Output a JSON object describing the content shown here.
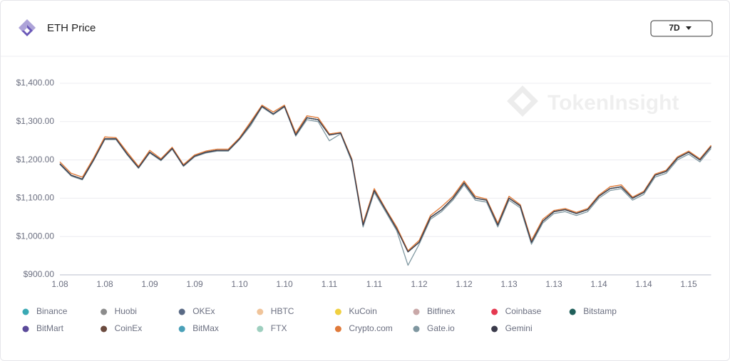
{
  "header": {
    "title": "ETH Price",
    "range": "7D"
  },
  "watermark": "TokenInsight",
  "chart_data": {
    "type": "line",
    "categories": [
      "1.08",
      null,
      null,
      null,
      "1.08",
      null,
      null,
      null,
      "1.09",
      null,
      null,
      null,
      "1.09",
      null,
      null,
      null,
      "1.10",
      null,
      null,
      null,
      "1.10",
      null,
      null,
      null,
      "1.11",
      null,
      null,
      null,
      "1.11",
      null,
      null,
      null,
      "1.12",
      null,
      null,
      null,
      "1.12",
      null,
      null,
      null,
      "1.13",
      null,
      null,
      null,
      "1.13",
      null,
      null,
      null,
      "1.14",
      null,
      null,
      null,
      "1.14",
      null,
      null,
      null,
      "1.15",
      null,
      null
    ],
    "ylim": [
      900,
      1400
    ],
    "yticks": [
      {
        "value": 900,
        "label": "$900.00"
      },
      {
        "value": 1000,
        "label": "$1,000.00"
      },
      {
        "value": 1100,
        "label": "$1,100.00"
      },
      {
        "value": 1200,
        "label": "$1,200.00"
      },
      {
        "value": 1300,
        "label": "$1,300.00"
      },
      {
        "value": 1400,
        "label": "$1,400.00"
      }
    ],
    "grid": true,
    "series": [
      {
        "name": "Binance",
        "color": "#3aa9b4",
        "values": [
          1190,
          1160,
          1150,
          1200,
          1255,
          1255,
          1215,
          1180,
          1220,
          1200,
          1230,
          1185,
          1210,
          1220,
          1225,
          1225,
          1255,
          1295,
          1340,
          1320,
          1340,
          1265,
          1310,
          1305,
          1265,
          1270,
          1200,
          1030,
          1120,
          1070,
          1020,
          960,
          985,
          1050,
          1070,
          1100,
          1140,
          1100,
          1095,
          1030,
          1100,
          1080,
          985,
          1040,
          1065,
          1070,
          1060,
          1070,
          1105,
          1125,
          1130,
          1100,
          1115,
          1160,
          1170,
          1205,
          1220,
          1200,
          1235
        ]
      },
      {
        "name": "Huobi",
        "color": "#8c8c8c",
        "values": [
          1190,
          1160,
          1150,
          1200,
          1255,
          1255,
          1215,
          1180,
          1220,
          1200,
          1230,
          1185,
          1210,
          1220,
          1225,
          1225,
          1255,
          1295,
          1340,
          1320,
          1340,
          1265,
          1310,
          1305,
          1265,
          1270,
          1200,
          1030,
          1120,
          1070,
          1020,
          960,
          985,
          1050,
          1070,
          1100,
          1140,
          1100,
          1095,
          1030,
          1100,
          1080,
          985,
          1040,
          1065,
          1070,
          1060,
          1070,
          1105,
          1125,
          1130,
          1100,
          1115,
          1160,
          1170,
          1205,
          1220,
          1200,
          1235
        ]
      },
      {
        "name": "OKEx",
        "color": "#5a6a85",
        "values": [
          1190,
          1160,
          1150,
          1200,
          1255,
          1255,
          1215,
          1180,
          1220,
          1200,
          1230,
          1185,
          1210,
          1220,
          1225,
          1225,
          1255,
          1295,
          1340,
          1320,
          1340,
          1265,
          1310,
          1305,
          1265,
          1270,
          1200,
          1030,
          1120,
          1070,
          1020,
          960,
          985,
          1050,
          1070,
          1100,
          1140,
          1100,
          1095,
          1030,
          1100,
          1080,
          985,
          1040,
          1065,
          1070,
          1060,
          1070,
          1105,
          1125,
          1130,
          1100,
          1115,
          1160,
          1170,
          1205,
          1220,
          1200,
          1235
        ]
      },
      {
        "name": "HBTC",
        "color": "#f0c49a",
        "values": [
          1195,
          1165,
          1155,
          1205,
          1260,
          1258,
          1220,
          1183,
          1225,
          1203,
          1233,
          1188,
          1213,
          1223,
          1228,
          1228,
          1258,
          1300,
          1343,
          1325,
          1343,
          1270,
          1315,
          1310,
          1268,
          1272,
          1203,
          1035,
          1125,
          1073,
          1025,
          963,
          990,
          1055,
          1078,
          1105,
          1145,
          1105,
          1098,
          1035,
          1105,
          1083,
          990,
          1045,
          1068,
          1073,
          1063,
          1073,
          1108,
          1130,
          1135,
          1103,
          1118,
          1163,
          1173,
          1208,
          1223,
          1203,
          1238
        ]
      },
      {
        "name": "KuCoin",
        "color": "#f0d040",
        "values": [
          1190,
          1160,
          1150,
          1200,
          1255,
          1255,
          1215,
          1180,
          1220,
          1200,
          1230,
          1185,
          1210,
          1220,
          1225,
          1225,
          1255,
          1295,
          1340,
          1320,
          1340,
          1265,
          1310,
          1305,
          1265,
          1270,
          1200,
          1030,
          1120,
          1070,
          1020,
          960,
          985,
          1050,
          1070,
          1100,
          1140,
          1100,
          1095,
          1030,
          1100,
          1080,
          985,
          1040,
          1065,
          1070,
          1060,
          1070,
          1105,
          1125,
          1130,
          1100,
          1115,
          1160,
          1170,
          1205,
          1220,
          1200,
          1235
        ]
      },
      {
        "name": "Bitfinex",
        "color": "#c9a8a8",
        "values": [
          1190,
          1160,
          1150,
          1200,
          1255,
          1255,
          1215,
          1180,
          1220,
          1200,
          1230,
          1185,
          1210,
          1220,
          1225,
          1225,
          1255,
          1295,
          1340,
          1320,
          1340,
          1265,
          1310,
          1305,
          1265,
          1270,
          1200,
          1030,
          1120,
          1070,
          1020,
          960,
          985,
          1050,
          1070,
          1100,
          1140,
          1100,
          1095,
          1030,
          1100,
          1080,
          985,
          1040,
          1065,
          1070,
          1060,
          1070,
          1105,
          1125,
          1130,
          1100,
          1115,
          1160,
          1170,
          1205,
          1220,
          1200,
          1235
        ]
      },
      {
        "name": "Coinbase",
        "color": "#e53950",
        "values": [
          1190,
          1160,
          1150,
          1200,
          1255,
          1255,
          1215,
          1180,
          1220,
          1200,
          1230,
          1185,
          1210,
          1220,
          1225,
          1225,
          1255,
          1295,
          1340,
          1320,
          1340,
          1265,
          1310,
          1305,
          1265,
          1270,
          1200,
          1030,
          1120,
          1070,
          1020,
          960,
          985,
          1050,
          1070,
          1100,
          1140,
          1100,
          1095,
          1030,
          1100,
          1080,
          985,
          1040,
          1065,
          1070,
          1060,
          1070,
          1105,
          1125,
          1130,
          1100,
          1115,
          1160,
          1170,
          1205,
          1220,
          1200,
          1235
        ]
      },
      {
        "name": "Bitstamp",
        "color": "#1f5f5a",
        "values": [
          1190,
          1160,
          1150,
          1200,
          1255,
          1255,
          1215,
          1180,
          1220,
          1200,
          1230,
          1185,
          1210,
          1220,
          1225,
          1225,
          1255,
          1295,
          1340,
          1320,
          1340,
          1265,
          1310,
          1305,
          1265,
          1270,
          1200,
          1030,
          1120,
          1070,
          1020,
          960,
          985,
          1050,
          1070,
          1100,
          1140,
          1100,
          1095,
          1030,
          1100,
          1080,
          985,
          1040,
          1065,
          1070,
          1060,
          1070,
          1105,
          1125,
          1130,
          1100,
          1115,
          1160,
          1170,
          1205,
          1220,
          1200,
          1235
        ]
      },
      {
        "name": "BitMart",
        "color": "#5b4a9a",
        "values": [
          1190,
          1160,
          1150,
          1200,
          1255,
          1255,
          1215,
          1180,
          1220,
          1200,
          1230,
          1185,
          1210,
          1220,
          1225,
          1225,
          1255,
          1295,
          1340,
          1320,
          1340,
          1265,
          1310,
          1305,
          1265,
          1270,
          1200,
          1030,
          1120,
          1070,
          1020,
          960,
          985,
          1050,
          1070,
          1100,
          1140,
          1100,
          1095,
          1030,
          1100,
          1080,
          985,
          1040,
          1065,
          1070,
          1060,
          1070,
          1105,
          1125,
          1130,
          1100,
          1115,
          1160,
          1170,
          1205,
          1220,
          1200,
          1235
        ]
      },
      {
        "name": "CoinEx",
        "color": "#6b4a3e",
        "values": [
          1190,
          1160,
          1150,
          1200,
          1255,
          1255,
          1215,
          1180,
          1220,
          1200,
          1230,
          1185,
          1210,
          1220,
          1225,
          1225,
          1255,
          1295,
          1340,
          1320,
          1340,
          1265,
          1310,
          1305,
          1265,
          1270,
          1200,
          1030,
          1120,
          1070,
          1020,
          960,
          985,
          1050,
          1070,
          1100,
          1140,
          1100,
          1095,
          1030,
          1100,
          1080,
          985,
          1040,
          1065,
          1070,
          1060,
          1070,
          1105,
          1125,
          1130,
          1100,
          1115,
          1160,
          1170,
          1205,
          1220,
          1200,
          1235
        ]
      },
      {
        "name": "BitMax",
        "color": "#4aa0b8",
        "values": [
          1190,
          1160,
          1150,
          1200,
          1255,
          1255,
          1215,
          1180,
          1220,
          1200,
          1230,
          1185,
          1210,
          1220,
          1225,
          1225,
          1255,
          1295,
          1340,
          1320,
          1340,
          1265,
          1310,
          1305,
          1265,
          1270,
          1200,
          1030,
          1120,
          1070,
          1020,
          960,
          985,
          1050,
          1070,
          1100,
          1140,
          1100,
          1095,
          1030,
          1100,
          1080,
          985,
          1040,
          1065,
          1070,
          1060,
          1070,
          1105,
          1125,
          1130,
          1100,
          1115,
          1160,
          1170,
          1205,
          1220,
          1200,
          1235
        ]
      },
      {
        "name": "FTX",
        "color": "#9ecfbf",
        "values": [
          1190,
          1160,
          1150,
          1200,
          1255,
          1255,
          1215,
          1180,
          1220,
          1200,
          1230,
          1185,
          1210,
          1220,
          1225,
          1225,
          1255,
          1295,
          1340,
          1320,
          1340,
          1265,
          1310,
          1305,
          1265,
          1270,
          1200,
          1030,
          1120,
          1070,
          1020,
          960,
          985,
          1050,
          1070,
          1100,
          1140,
          1100,
          1095,
          1030,
          1100,
          1080,
          985,
          1040,
          1065,
          1070,
          1060,
          1070,
          1105,
          1125,
          1130,
          1100,
          1115,
          1160,
          1170,
          1205,
          1220,
          1200,
          1235
        ]
      },
      {
        "name": "Crypto.com",
        "color": "#e07a3a",
        "values": [
          1195,
          1165,
          1155,
          1205,
          1260,
          1258,
          1220,
          1183,
          1225,
          1203,
          1233,
          1188,
          1213,
          1223,
          1228,
          1228,
          1258,
          1300,
          1343,
          1325,
          1343,
          1270,
          1315,
          1310,
          1268,
          1272,
          1203,
          1035,
          1125,
          1073,
          1025,
          963,
          990,
          1055,
          1078,
          1105,
          1145,
          1105,
          1098,
          1035,
          1105,
          1083,
          990,
          1045,
          1068,
          1073,
          1063,
          1073,
          1108,
          1130,
          1135,
          1103,
          1118,
          1163,
          1173,
          1208,
          1223,
          1203,
          1238
        ]
      },
      {
        "name": "Gate.io",
        "color": "#7f97a0",
        "values": [
          1188,
          1158,
          1148,
          1198,
          1253,
          1253,
          1213,
          1178,
          1218,
          1198,
          1228,
          1183,
          1208,
          1218,
          1223,
          1223,
          1253,
          1290,
          1338,
          1318,
          1338,
          1262,
          1305,
          1300,
          1250,
          1268,
          1195,
          1025,
          1115,
          1065,
          1015,
          925,
          980,
          1045,
          1065,
          1095,
          1135,
          1095,
          1090,
          1025,
          1095,
          1075,
          980,
          1035,
          1060,
          1065,
          1055,
          1065,
          1100,
          1120,
          1125,
          1095,
          1110,
          1155,
          1165,
          1200,
          1215,
          1195,
          1230
        ]
      },
      {
        "name": "Gemini",
        "color": "#3a3a4a",
        "values": [
          1190,
          1160,
          1150,
          1200,
          1255,
          1255,
          1215,
          1180,
          1220,
          1200,
          1230,
          1185,
          1210,
          1220,
          1225,
          1225,
          1255,
          1295,
          1340,
          1320,
          1340,
          1265,
          1310,
          1305,
          1265,
          1270,
          1200,
          1030,
          1120,
          1070,
          1020,
          960,
          985,
          1050,
          1070,
          1100,
          1140,
          1100,
          1095,
          1030,
          1100,
          1080,
          985,
          1040,
          1065,
          1070,
          1060,
          1070,
          1105,
          1125,
          1130,
          1100,
          1115,
          1160,
          1170,
          1205,
          1220,
          1200,
          1235
        ]
      }
    ]
  }
}
